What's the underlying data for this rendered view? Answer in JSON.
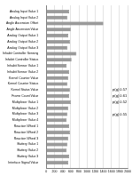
{
  "chart_data": {
    "type": "bar",
    "orientation": "horizontal",
    "categories": [
      "Analog Input Value 1",
      "Analog Input Value 2",
      "Angle Ascension Offset",
      "Angle Ascension Value",
      "Analog Output Value 1",
      "Analog Output Value 2",
      "Analog Output Value 3",
      "Inhabit Controller Sensing",
      "Inhabit Controller Status",
      "Inhabit Sensor Value 1",
      "Inhabit Sensor Value 2",
      "Kernel Counter Value",
      "Kernel Counter Status",
      "Kernel Status Value",
      "Frame Count Value",
      "Multiplexer Value 1",
      "Multiplexer Value 2",
      "Multiplexer Value 3",
      "Multiplexer Value 4",
      "Reaction Wheel 1",
      "Reaction Wheel 2",
      "Reaction Wheel 3",
      "Battery Value 1",
      "Battery Value 2",
      "Battery Value 3",
      "Interface Signal Value"
    ],
    "values": [
      560,
      520,
      1400,
      600,
      540,
      580,
      520,
      740,
      620,
      500,
      560,
      540,
      520,
      580,
      560,
      600,
      540,
      520,
      500,
      560,
      580,
      540,
      520,
      500,
      560,
      540
    ],
    "color": "#9a9a9a",
    "xlim": [
      0,
      2000
    ],
    "xticks": [
      0,
      200,
      400,
      600,
      800,
      1000,
      1200,
      1400,
      1600,
      1800,
      2000
    ],
    "grid": true,
    "annotations": [
      {
        "category": "Kernel Status Value",
        "text": "p(g) 0.57"
      },
      {
        "category": "Frame Count Value",
        "text": "p(g) 0.61"
      },
      {
        "category": "Multiplexer Value 1",
        "text": "p(g) 0.52"
      },
      {
        "category": "Multiplexer Value 3",
        "text": "p(g) 0.55"
      }
    ]
  }
}
